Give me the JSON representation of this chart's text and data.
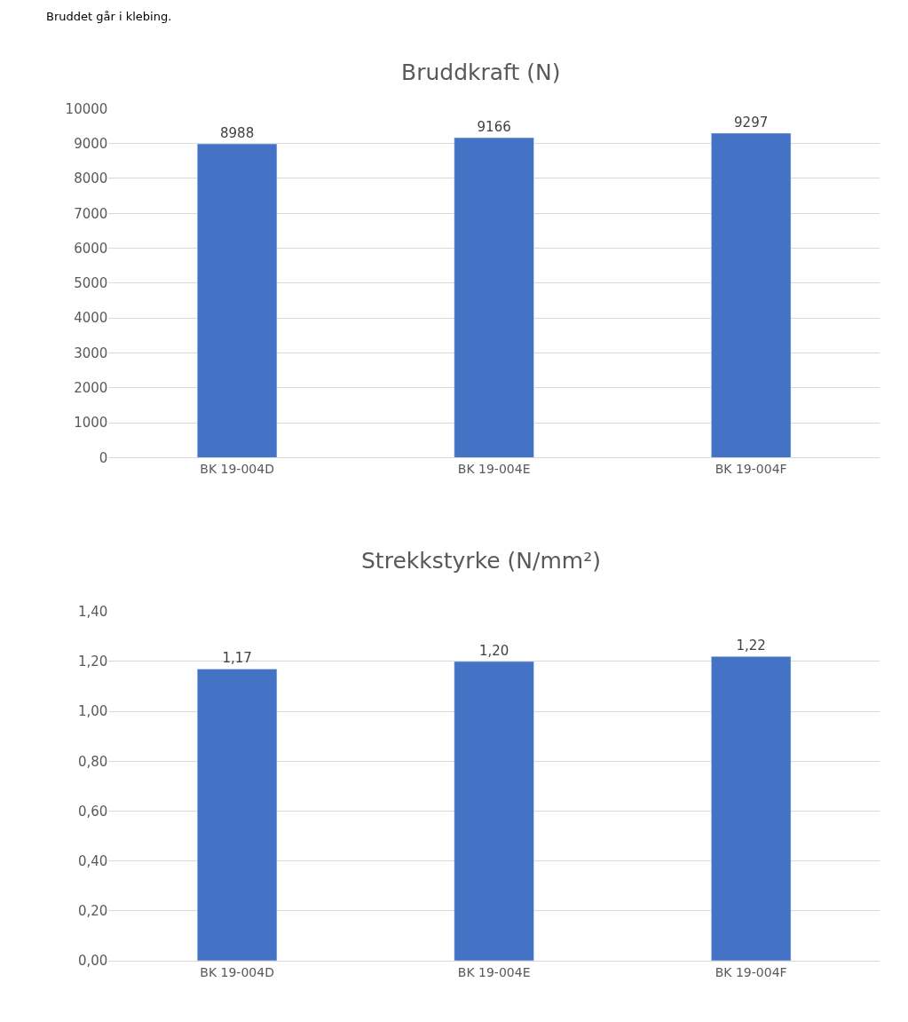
{
  "chart_data": [
    {
      "type": "bar",
      "title": "Bruddkraft (N)",
      "annotations": [
        "Bruddet går i klebing."
      ],
      "categories": [
        "BK 19-004D",
        "BK 19-004E",
        "BK 19-004F"
      ],
      "values": [
        8988,
        9166,
        9297
      ],
      "color": "#4472c4",
      "ylim": [
        0,
        10000
      ],
      "yticks": [
        0,
        1000,
        2000,
        3000,
        4000,
        5000,
        6000,
        7000,
        8000,
        9000,
        10000
      ],
      "grid": "y",
      "data_labels": true
    },
    {
      "type": "bar",
      "title": "Strekkstyrke (N/mm²)",
      "categories": [
        "BK 19-004D",
        "BK 19-004E",
        "BK 19-004F"
      ],
      "values": [
        1.17,
        1.2,
        1.22
      ],
      "color": "#4472c4",
      "value_labels": [
        "1,17",
        "1,20",
        "1,22"
      ],
      "ylim": [
        0,
        1.4
      ],
      "yticks": [
        {
          "value": 0,
          "label": "0,00"
        },
        {
          "value": 0.2,
          "label": "0,20"
        },
        {
          "value": 0.4,
          "label": "0,40"
        },
        {
          "value": 0.6,
          "label": "0,60"
        },
        {
          "value": 0.8,
          "label": "0,80"
        },
        {
          "value": 1.0,
          "label": "1,00"
        },
        {
          "value": 1.2,
          "label": "1,20"
        },
        {
          "value": 1.4,
          "label": "1,40"
        }
      ],
      "grid": "y"
    }
  ]
}
